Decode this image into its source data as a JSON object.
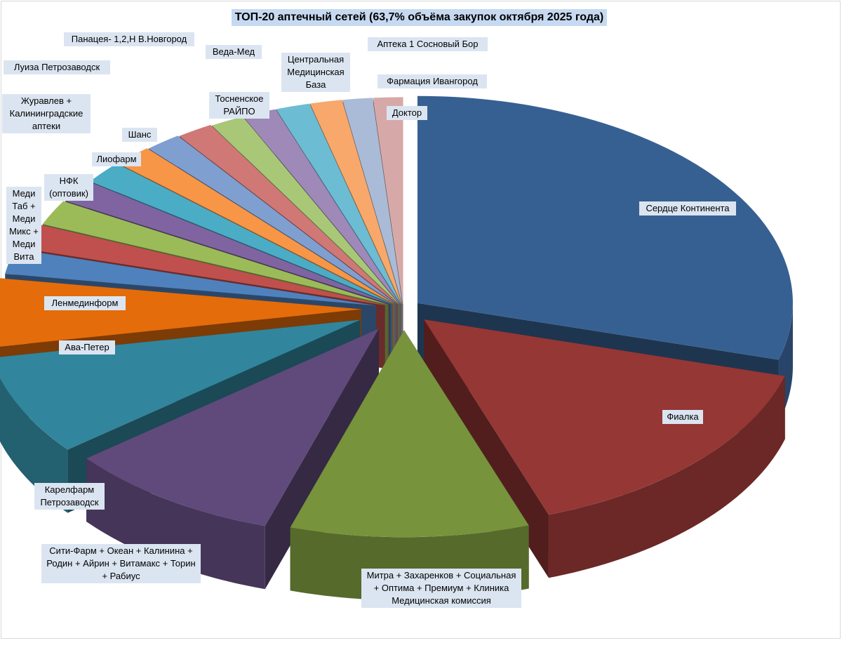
{
  "chart_data": {
    "type": "pie",
    "variant": "3d-exploded",
    "title": "ТОП-20 аптечный сетей (63,7% объёма закупок октября  2025 года)",
    "slices": [
      {
        "label": "Сердце Континента",
        "value": 30.0,
        "color": "#376092"
      },
      {
        "label": "Фиалка",
        "value": 15.5,
        "color": "#953735"
      },
      {
        "label": "Митра + Захаренков + Социальная + Оптима + Премиум + Клиника Медицинская комиссия",
        "value": 10.5,
        "color": "#77933c"
      },
      {
        "label": "Сити-Фарм + Океан + Калинина + Родин + Айрин + Витамакс + Торин + Рабиус",
        "value": 9.5,
        "color": "#604a7b"
      },
      {
        "label": "Карелфарм Петрозаводск",
        "value": 8.0,
        "color": "#31859c"
      },
      {
        "label": "Ава-Петер",
        "value": 5.5,
        "color": "#e46c0a"
      },
      {
        "label": "Ленмединформ",
        "value": 2.0,
        "color": "#4f81bd"
      },
      {
        "label": "Меди Таб + Меди Микс + Меди Вита",
        "value": 2.0,
        "color": "#c0504d"
      },
      {
        "label": "Журавлев + Калининградские аптеки",
        "value": 2.0,
        "color": "#9bbb59"
      },
      {
        "label": "НФК (оптовик)",
        "value": 1.8,
        "color": "#8064a2"
      },
      {
        "label": "Луиза Петрозаводск",
        "value": 1.8,
        "color": "#4bacc6"
      },
      {
        "label": "Лиофарм",
        "value": 1.7,
        "color": "#f79646"
      },
      {
        "label": "Шанс",
        "value": 1.6,
        "color": "#7f9fd0"
      },
      {
        "label": "Панацея- 1,2,Н В.Новгород",
        "value": 1.6,
        "color": "#d07876"
      },
      {
        "label": "Тосненское РАЙПО",
        "value": 1.5,
        "color": "#a8c878"
      },
      {
        "label": "Веда-Мед",
        "value": 1.5,
        "color": "#9e89b8"
      },
      {
        "label": "Центральная Медицинская База",
        "value": 1.5,
        "color": "#6cbcd4"
      },
      {
        "label": "Аптека 1 Сосновый Бор",
        "value": 1.4,
        "color": "#f8a86a"
      },
      {
        "label": "Фармация Ивангород",
        "value": 1.3,
        "color": "#aabbd8"
      },
      {
        "label": "Доктор",
        "value": 1.3,
        "color": "#d6a9a8"
      }
    ]
  }
}
